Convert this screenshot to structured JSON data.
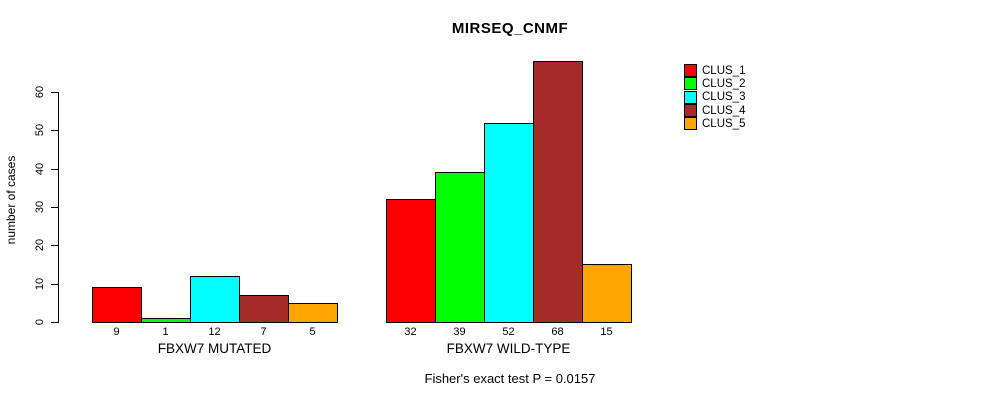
{
  "title": "MIRSEQ_CNMF",
  "ylabel": "number of cases",
  "footer": "Fisher's exact test P = 0.0157",
  "legend": {
    "entries": [
      {
        "label": "CLUS_1",
        "color": "#FF0000"
      },
      {
        "label": "CLUS_2",
        "color": "#00FF00"
      },
      {
        "label": "CLUS_3",
        "color": "#00FFFF"
      },
      {
        "label": "CLUS_4",
        "color": "#A52A2A"
      },
      {
        "label": "CLUS_5",
        "color": "#FFA500"
      }
    ]
  },
  "chart_data": {
    "type": "bar",
    "title": "MIRSEQ_CNMF",
    "xlabel": "",
    "ylabel": "number of cases",
    "categories": [
      "CLUS_1",
      "CLUS_2",
      "CLUS_3",
      "CLUS_4",
      "CLUS_5"
    ],
    "series_colors": [
      "#FF0000",
      "#00FF00",
      "#00FFFF",
      "#A52A2A",
      "#FFA500"
    ],
    "groups": [
      {
        "label": "FBXW7 MUTATED",
        "values": [
          9,
          1,
          12,
          7,
          5
        ]
      },
      {
        "label": "FBXW7 WILD-TYPE",
        "values": [
          32,
          39,
          52,
          68,
          15
        ]
      }
    ],
    "yticks": [
      0,
      10,
      20,
      30,
      40,
      50,
      60
    ],
    "ylim": [
      0,
      60
    ],
    "grid": false,
    "legend_position": "top-right",
    "bar_value_labels_shown": true,
    "annotation": "Fisher's exact test P = 0.0157"
  }
}
